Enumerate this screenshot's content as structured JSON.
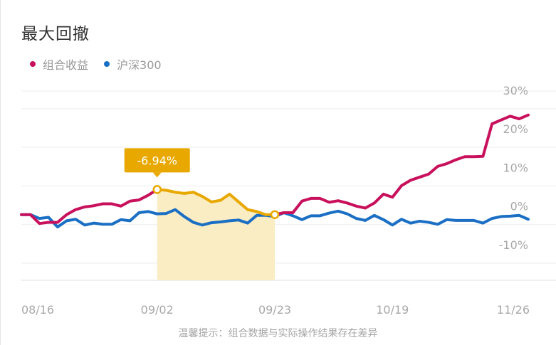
{
  "title": "最大回撤",
  "legend": [
    {
      "name": "组合收益",
      "color": "#c8105c"
    },
    {
      "name": "沪深300",
      "color": "#1a6fc4"
    }
  ],
  "footnote": "温馨提示：组合数据与实际操作结果存在差异",
  "chart_data": {
    "type": "line",
    "title": "最大回撤",
    "ylim": [
      -17,
      32
    ],
    "yticks": [
      30,
      20,
      10,
      0,
      -10
    ],
    "ytick_labels": [
      "30%",
      "20%",
      "10%",
      "0%",
      "-10%"
    ],
    "xtick_labels": [
      {
        "label": "08/16",
        "index": 2
      },
      {
        "label": "09/02",
        "index": 15
      },
      {
        "label": "09/23",
        "index": 28
      },
      {
        "label": "10/19",
        "index": 41
      },
      {
        "label": "11/26",
        "index": 56
      }
    ],
    "n_points": 57,
    "series": [
      {
        "name": "组合收益",
        "color": "#c8105c",
        "values": [
          0,
          0,
          -2.3,
          -2,
          -2,
          0,
          1.3,
          2,
          2.3,
          2.8,
          2.8,
          2.2,
          3.5,
          3.8,
          5,
          6.5,
          6.3,
          5.8,
          5.5,
          5.8,
          4.7,
          3.3,
          3.7,
          5.3,
          3.3,
          1.3,
          0.8,
          0,
          0,
          0.5,
          0.5,
          3.5,
          4.2,
          4.2,
          3.2,
          3.6,
          3,
          2.2,
          1.7,
          3,
          5.3,
          4.5,
          7.5,
          8.9,
          9.7,
          10.5,
          12.5,
          13.2,
          14.2,
          15,
          15,
          15.1,
          23.5,
          24.5,
          25.5,
          24.8,
          25.8
        ]
      },
      {
        "name": "沪深300",
        "color": "#1a6fc4",
        "values": [
          0,
          0,
          -1,
          -0.7,
          -3.2,
          -1.6,
          -1.2,
          -2.7,
          -2.2,
          -2.5,
          -2.5,
          -1.3,
          -1.6,
          0.5,
          0.8,
          0.2,
          0.3,
          1.3,
          -0.5,
          -2,
          -2.7,
          -2.1,
          -1.9,
          -1.6,
          -1.4,
          -2.2,
          -0.2,
          -0.2,
          -0.5,
          0.5,
          -0.3,
          -1.3,
          -0.3,
          -0.3,
          0.4,
          0.9,
          0.2,
          -1,
          -1.5,
          -0.2,
          -1.3,
          -2.7,
          -1.2,
          -2.2,
          -1.7,
          -2,
          -2.5,
          -1.3,
          -1.5,
          -1.5,
          -1.5,
          -2.2,
          -1,
          -0.5,
          -0.4,
          -0.2,
          -1.2
        ]
      }
    ],
    "max_drawdown": {
      "label": "-6.94%",
      "value": -6.94,
      "series": "组合收益",
      "start_index": 15,
      "end_index": 28,
      "color": "#e8a800"
    }
  }
}
